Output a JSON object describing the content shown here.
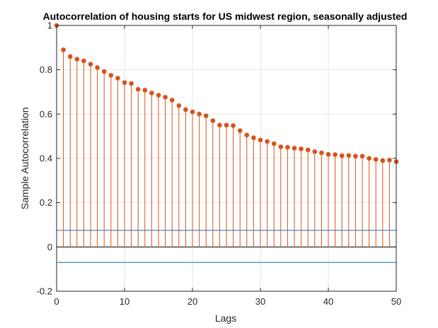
{
  "chart_data": {
    "type": "stem",
    "title": "Autocorrelation of housing starts for US midwest region, seasonally adjusted",
    "xlabel": "Lags",
    "ylabel": "Sample Autocorrelation",
    "xlim": [
      0,
      50
    ],
    "ylim": [
      -0.2,
      1
    ],
    "xticks": [
      0,
      10,
      20,
      30,
      40,
      50
    ],
    "yticks": [
      -0.2,
      0,
      0.2,
      0.4,
      0.6,
      0.8,
      1
    ],
    "grid": true,
    "confidence_bounds": [
      0.075,
      -0.07
    ],
    "lags": [
      0,
      1,
      2,
      3,
      4,
      5,
      6,
      7,
      8,
      9,
      10,
      11,
      12,
      13,
      14,
      15,
      16,
      17,
      18,
      19,
      20,
      21,
      22,
      23,
      24,
      25,
      26,
      27,
      28,
      29,
      30,
      31,
      32,
      33,
      34,
      35,
      36,
      37,
      38,
      39,
      40,
      41,
      42,
      43,
      44,
      45,
      46,
      47,
      48,
      49,
      50
    ],
    "values": [
      1.0,
      0.89,
      0.86,
      0.848,
      0.84,
      0.825,
      0.81,
      0.792,
      0.775,
      0.762,
      0.742,
      0.738,
      0.712,
      0.708,
      0.695,
      0.685,
      0.676,
      0.663,
      0.638,
      0.62,
      0.61,
      0.6,
      0.592,
      0.57,
      0.55,
      0.55,
      0.548,
      0.525,
      0.505,
      0.493,
      0.483,
      0.476,
      0.466,
      0.452,
      0.45,
      0.446,
      0.443,
      0.438,
      0.43,
      0.425,
      0.418,
      0.417,
      0.412,
      0.413,
      0.41,
      0.41,
      0.4,
      0.395,
      0.39,
      0.392,
      0.385
    ],
    "colors": {
      "stem": "#D95319",
      "bounds": "#0072BD",
      "grid": "#e6e6e6",
      "axis": "#262626"
    }
  }
}
